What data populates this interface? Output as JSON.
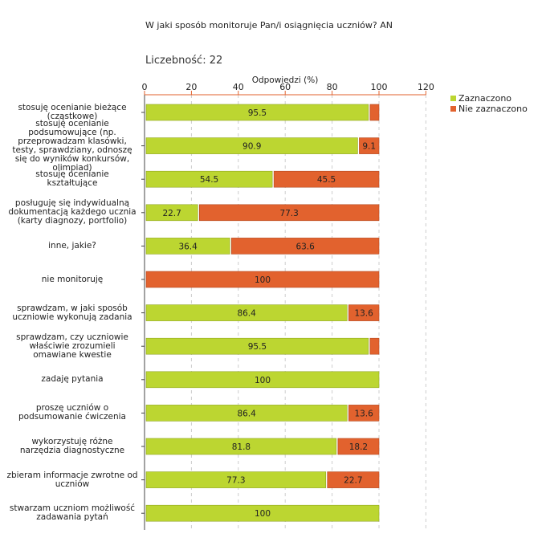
{
  "chart_data": {
    "type": "bar",
    "stacked": true,
    "orientation": "horizontal",
    "title": "W jaki sposób monitoruje Pan/i osiągnięcia uczniów?  AN",
    "subtitle": "Liczebność: 22",
    "xlabel": "Odpowiedzi (%)",
    "xlim": [
      0,
      120
    ],
    "xticks": [
      "0",
      "20",
      "40",
      "60",
      "80",
      "100",
      "120"
    ],
    "grid": true,
    "legend_position": "top-right",
    "categories": [
      [
        "stosuję ocenianie bieżące",
        "(cząstkowe)"
      ],
      [
        "stosuję ocenianie",
        "podsumowujące (np.",
        "przeprowadzam klasówki,",
        "testy, sprawdziany, odnoszę",
        "się do wyników konkursów,",
        "olimpiad)"
      ],
      [
        "stosuję ocenianie",
        "kształtujące"
      ],
      [
        "posługuję się indywidualną",
        "dokumentacją każdego ucznia",
        "(karty diagnozy, portfolio)"
      ],
      [
        "inne, jakie?"
      ],
      [
        "nie monitoruję"
      ],
      [
        "sprawdzam, w jaki sposób",
        "uczniowie wykonują zadania"
      ],
      [
        "sprawdzam, czy uczniowie",
        "właściwie zrozumieli",
        "omawiane kwestie"
      ],
      [
        "zadaję pytania"
      ],
      [
        "proszę uczniów o",
        "podsumowanie ćwiczenia"
      ],
      [
        "wykorzystuję różne",
        "narzędzia diagnostyczne"
      ],
      [
        "zbieram informacje zwrotne od",
        "uczniów"
      ],
      [
        "stwarzam uczniom możliwość",
        "zadawania pytań"
      ]
    ],
    "series": [
      {
        "name": "Zaznaczono",
        "color": "#bcd631",
        "values": [
          95.5,
          90.9,
          54.5,
          22.7,
          36.4,
          0,
          86.4,
          95.5,
          100,
          86.4,
          81.8,
          77.3,
          100
        ],
        "labels": [
          "95.5",
          "90.9",
          "54.5",
          "22.7",
          "36.4",
          "",
          "86.4",
          "95.5",
          "100",
          "86.4",
          "81.8",
          "77.3",
          "100"
        ]
      },
      {
        "name": "Nie zaznaczono",
        "color": "#e2622e",
        "values": [
          4.5,
          9.1,
          45.5,
          77.3,
          63.6,
          100,
          13.6,
          4.5,
          0,
          13.6,
          18.2,
          22.7,
          0
        ],
        "labels": [
          "",
          "9.1",
          "45.5",
          "77.3",
          "63.6",
          "100",
          "13.6",
          "",
          "",
          "13.6",
          "18.2",
          "22.7",
          ""
        ]
      }
    ]
  }
}
